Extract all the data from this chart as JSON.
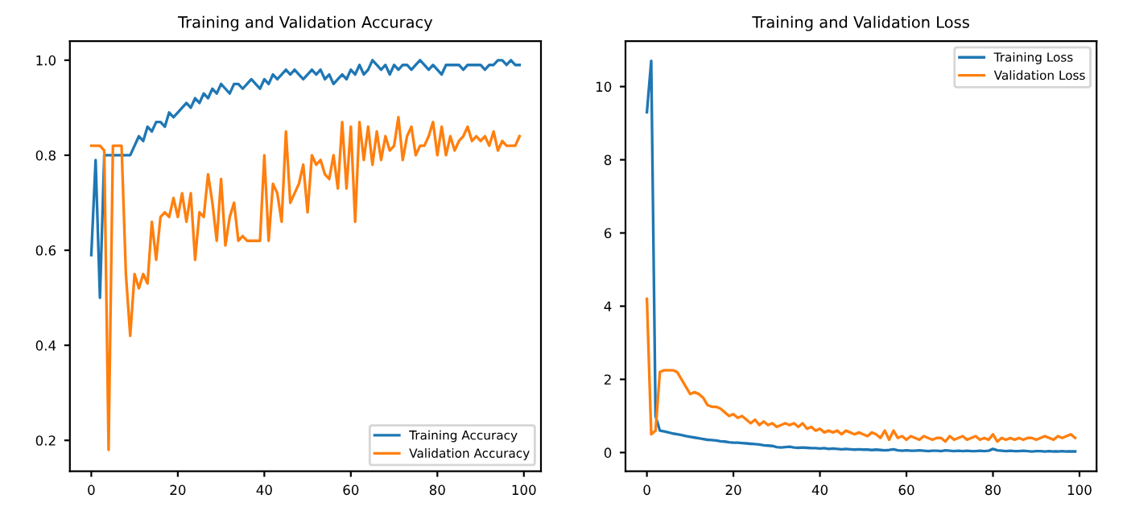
{
  "chart_data": [
    {
      "type": "line",
      "title": "Training and Validation Accuracy",
      "x": [
        0,
        1,
        2,
        3,
        4,
        5,
        6,
        7,
        8,
        9,
        10,
        11,
        12,
        13,
        14,
        15,
        16,
        17,
        18,
        19,
        20,
        21,
        22,
        23,
        24,
        25,
        26,
        27,
        28,
        29,
        30,
        31,
        32,
        33,
        34,
        35,
        36,
        37,
        38,
        39,
        40,
        41,
        42,
        43,
        44,
        45,
        46,
        47,
        48,
        49,
        50,
        51,
        52,
        53,
        54,
        55,
        56,
        57,
        58,
        59,
        60,
        61,
        62,
        63,
        64,
        65,
        66,
        67,
        68,
        69,
        70,
        71,
        72,
        73,
        74,
        75,
        76,
        77,
        78,
        79,
        80,
        81,
        82,
        83,
        84,
        85,
        86,
        87,
        88,
        89,
        90,
        91,
        92,
        93,
        94,
        95,
        96,
        97,
        98,
        99
      ],
      "series": [
        {
          "name": "Training Accuracy",
          "color": "#1f77b4",
          "values": [
            0.59,
            0.79,
            0.5,
            0.8,
            0.8,
            0.8,
            0.8,
            0.8,
            0.8,
            0.8,
            0.82,
            0.84,
            0.83,
            0.86,
            0.85,
            0.87,
            0.87,
            0.86,
            0.89,
            0.88,
            0.89,
            0.9,
            0.91,
            0.9,
            0.92,
            0.91,
            0.93,
            0.92,
            0.94,
            0.93,
            0.95,
            0.94,
            0.93,
            0.95,
            0.95,
            0.94,
            0.95,
            0.96,
            0.95,
            0.94,
            0.96,
            0.95,
            0.97,
            0.96,
            0.97,
            0.98,
            0.97,
            0.98,
            0.97,
            0.96,
            0.97,
            0.98,
            0.97,
            0.98,
            0.96,
            0.97,
            0.95,
            0.96,
            0.97,
            0.96,
            0.98,
            0.97,
            0.99,
            0.97,
            0.98,
            1.0,
            0.99,
            0.98,
            0.99,
            0.97,
            0.99,
            0.98,
            0.99,
            0.99,
            0.98,
            0.99,
            1.0,
            0.99,
            0.98,
            0.99,
            0.98,
            0.97,
            0.99,
            0.99,
            0.99,
            0.99,
            0.98,
            0.99,
            0.99,
            0.99,
            0.99,
            0.98,
            0.99,
            0.99,
            1.0,
            1.0,
            0.99,
            1.0,
            0.99,
            0.99
          ]
        },
        {
          "name": "Validation Accuracy",
          "color": "#ff7f0e",
          "values": [
            0.82,
            0.82,
            0.82,
            0.81,
            0.18,
            0.82,
            0.82,
            0.82,
            0.55,
            0.42,
            0.55,
            0.52,
            0.55,
            0.53,
            0.66,
            0.58,
            0.67,
            0.68,
            0.67,
            0.71,
            0.67,
            0.72,
            0.66,
            0.72,
            0.58,
            0.68,
            0.67,
            0.76,
            0.7,
            0.62,
            0.75,
            0.61,
            0.67,
            0.7,
            0.62,
            0.63,
            0.62,
            0.62,
            0.62,
            0.62,
            0.8,
            0.62,
            0.74,
            0.72,
            0.66,
            0.85,
            0.7,
            0.72,
            0.74,
            0.78,
            0.68,
            0.8,
            0.78,
            0.79,
            0.76,
            0.75,
            0.8,
            0.73,
            0.87,
            0.73,
            0.86,
            0.66,
            0.87,
            0.79,
            0.86,
            0.78,
            0.85,
            0.79,
            0.84,
            0.81,
            0.82,
            0.88,
            0.79,
            0.84,
            0.86,
            0.8,
            0.82,
            0.82,
            0.84,
            0.87,
            0.8,
            0.86,
            0.8,
            0.84,
            0.81,
            0.83,
            0.84,
            0.86,
            0.83,
            0.84,
            0.83,
            0.84,
            0.82,
            0.85,
            0.81,
            0.83,
            0.82,
            0.82,
            0.82,
            0.84
          ]
        }
      ],
      "xlim": [
        -4.95,
        103.95
      ],
      "xticks": [
        0,
        20,
        40,
        60,
        80,
        100
      ],
      "ylim": [
        0.135,
        1.04
      ],
      "yticks": [
        0.2,
        0.4,
        0.6,
        0.8,
        {
          "value": 1.0,
          "label": "1.0"
        }
      ],
      "legend": "lower right",
      "grid": false
    },
    {
      "type": "line",
      "title": "Training and Validation Loss",
      "x": [
        0,
        1,
        2,
        3,
        4,
        5,
        6,
        7,
        8,
        9,
        10,
        11,
        12,
        13,
        14,
        15,
        16,
        17,
        18,
        19,
        20,
        21,
        22,
        23,
        24,
        25,
        26,
        27,
        28,
        29,
        30,
        31,
        32,
        33,
        34,
        35,
        36,
        37,
        38,
        39,
        40,
        41,
        42,
        43,
        44,
        45,
        46,
        47,
        48,
        49,
        50,
        51,
        52,
        53,
        54,
        55,
        56,
        57,
        58,
        59,
        60,
        61,
        62,
        63,
        64,
        65,
        66,
        67,
        68,
        69,
        70,
        71,
        72,
        73,
        74,
        75,
        76,
        77,
        78,
        79,
        80,
        81,
        82,
        83,
        84,
        85,
        86,
        87,
        88,
        89,
        90,
        91,
        92,
        93,
        94,
        95,
        96,
        97,
        98,
        99
      ],
      "series": [
        {
          "name": "Training Loss",
          "color": "#1f77b4",
          "values": [
            9.3,
            10.7,
            1.0,
            0.6,
            0.58,
            0.55,
            0.52,
            0.5,
            0.48,
            0.45,
            0.43,
            0.41,
            0.39,
            0.37,
            0.35,
            0.34,
            0.33,
            0.31,
            0.3,
            0.28,
            0.27,
            0.27,
            0.26,
            0.25,
            0.24,
            0.23,
            0.22,
            0.2,
            0.19,
            0.18,
            0.15,
            0.14,
            0.15,
            0.16,
            0.14,
            0.13,
            0.14,
            0.13,
            0.12,
            0.12,
            0.11,
            0.12,
            0.1,
            0.11,
            0.1,
            0.09,
            0.1,
            0.09,
            0.08,
            0.09,
            0.08,
            0.08,
            0.07,
            0.08,
            0.07,
            0.06,
            0.07,
            0.09,
            0.06,
            0.05,
            0.06,
            0.05,
            0.05,
            0.06,
            0.05,
            0.04,
            0.05,
            0.05,
            0.04,
            0.06,
            0.05,
            0.04,
            0.05,
            0.04,
            0.05,
            0.04,
            0.04,
            0.05,
            0.04,
            0.05,
            0.1,
            0.06,
            0.05,
            0.04,
            0.05,
            0.04,
            0.04,
            0.05,
            0.04,
            0.03,
            0.04,
            0.04,
            0.03,
            0.04,
            0.03,
            0.03,
            0.04,
            0.03,
            0.03,
            0.03
          ]
        },
        {
          "name": "Validation Loss",
          "color": "#ff7f0e",
          "values": [
            4.2,
            0.5,
            0.6,
            2.2,
            2.25,
            2.25,
            2.25,
            2.2,
            2.0,
            1.8,
            1.6,
            1.65,
            1.6,
            1.5,
            1.3,
            1.25,
            1.25,
            1.2,
            1.1,
            1.0,
            1.05,
            0.95,
            1.0,
            0.9,
            0.8,
            0.9,
            0.75,
            0.85,
            0.75,
            0.8,
            0.7,
            0.75,
            0.8,
            0.75,
            0.8,
            0.7,
            0.8,
            0.65,
            0.7,
            0.6,
            0.65,
            0.55,
            0.6,
            0.55,
            0.6,
            0.5,
            0.6,
            0.55,
            0.5,
            0.55,
            0.5,
            0.45,
            0.55,
            0.5,
            0.4,
            0.6,
            0.35,
            0.6,
            0.4,
            0.45,
            0.35,
            0.45,
            0.4,
            0.35,
            0.45,
            0.4,
            0.35,
            0.4,
            0.4,
            0.3,
            0.45,
            0.35,
            0.4,
            0.45,
            0.35,
            0.4,
            0.45,
            0.35,
            0.4,
            0.35,
            0.5,
            0.3,
            0.4,
            0.35,
            0.4,
            0.35,
            0.4,
            0.35,
            0.4,
            0.4,
            0.35,
            0.4,
            0.45,
            0.4,
            0.35,
            0.45,
            0.4,
            0.45,
            0.5,
            0.4
          ]
        }
      ],
      "xlim": [
        -4.95,
        103.95
      ],
      "xticks": [
        0,
        20,
        40,
        60,
        80,
        100
      ],
      "ylim": [
        -0.51,
        11.24
      ],
      "yticks": [
        0,
        2,
        4,
        6,
        8,
        10
      ],
      "legend": "upper right",
      "grid": false
    }
  ]
}
